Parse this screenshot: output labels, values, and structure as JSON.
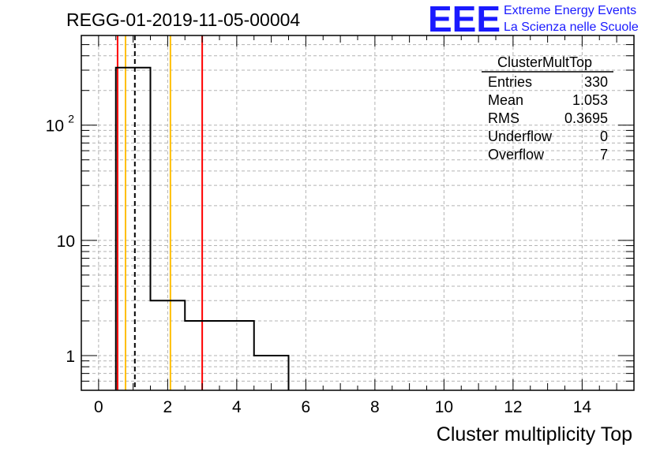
{
  "run_title": "REGG-01-2019-11-05-00004",
  "logo": {
    "mark": "EEE",
    "line1": "Extreme Energy Events",
    "line2": "La Scienza nelle Scuole",
    "color": "#1a1aff"
  },
  "stats": {
    "name": "ClusterMultTop",
    "rows": [
      {
        "label": "Entries",
        "value": "330"
      },
      {
        "label": "Mean",
        "value": "1.053"
      },
      {
        "label": "RMS",
        "value": "0.3695"
      },
      {
        "label": "Underflow",
        "value": "0"
      },
      {
        "label": "Overflow",
        "value": "7"
      }
    ]
  },
  "chart_data": {
    "type": "histogram",
    "title": "REGG-01-2019-11-05-00004",
    "xlabel": "Cluster multiplicity Top",
    "ylabel": "",
    "xlim": [
      -0.5,
      15.5
    ],
    "ylim": [
      0.5,
      600
    ],
    "yscale": "log",
    "grid": true,
    "bins": [
      {
        "low": 0.5,
        "high": 1.5,
        "count": 316
      },
      {
        "low": 1.5,
        "high": 2.5,
        "count": 3
      },
      {
        "low": 2.5,
        "high": 3.5,
        "count": 2
      },
      {
        "low": 3.5,
        "high": 4.5,
        "count": 2
      },
      {
        "low": 4.5,
        "high": 5.5,
        "count": 1
      }
    ],
    "xticks": [
      "0",
      "2",
      "4",
      "6",
      "8",
      "10",
      "12",
      "14"
    ],
    "yticks": [
      {
        "value": 1,
        "label": "1"
      },
      {
        "value": 10,
        "label": "10"
      },
      {
        "value": 100,
        "label": "10",
        "exponent": "2"
      }
    ],
    "vertical_lines": [
      {
        "x": 0.55,
        "color": "#ff0000",
        "style": "solid"
      },
      {
        "x": 0.78,
        "color": "#ffbf00",
        "style": "solid"
      },
      {
        "x": 1.05,
        "color": "#000000",
        "style": "dashed"
      },
      {
        "x": 2.08,
        "color": "#ffbf00",
        "style": "solid"
      },
      {
        "x": 3.0,
        "color": "#ff0000",
        "style": "solid"
      }
    ],
    "histogram_color": "#000000"
  }
}
